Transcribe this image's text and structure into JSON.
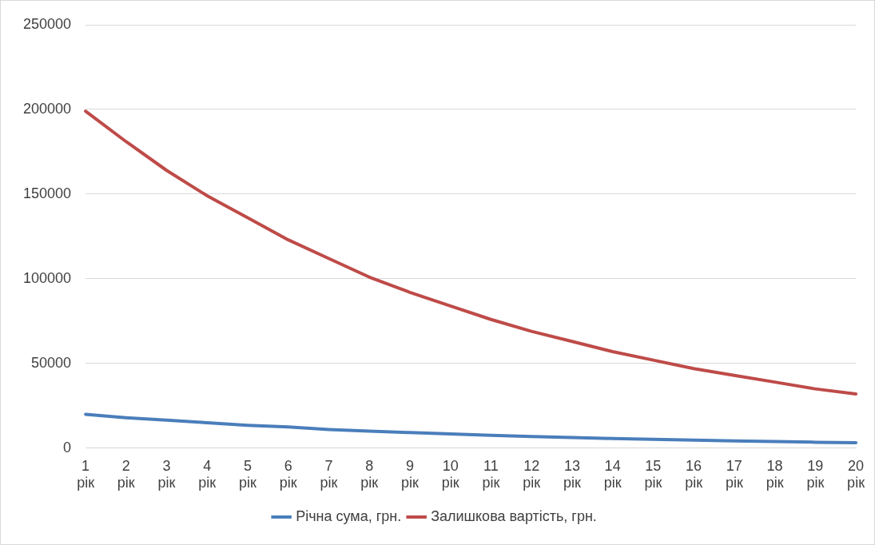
{
  "chart_data": {
    "type": "line",
    "categories": [
      "1 рік",
      "2 рік",
      "3 рік",
      "4 рік",
      "5 рік",
      "6 рік",
      "7 рік",
      "8 рік",
      "9 рік",
      "10 рік",
      "11 рік",
      "12 рік",
      "13 рік",
      "14 рік",
      "15 рік",
      "16 рік",
      "17 рік",
      "18 рік",
      "19 рік",
      "20 рік"
    ],
    "series": [
      {
        "name": "Річна сума, грн.",
        "color": "#4a7ebb",
        "values": [
          20000,
          18000,
          16500,
          15000,
          13500,
          12500,
          11000,
          10000,
          9200,
          8400,
          7600,
          6900,
          6300,
          5700,
          5200,
          4700,
          4300,
          3900,
          3500,
          3200
        ]
      },
      {
        "name": "Залишкова вартість, грн.",
        "color": "#be4b48",
        "values": [
          199000,
          181000,
          164000,
          149000,
          136000,
          123000,
          112000,
          101000,
          92000,
          84000,
          76000,
          69000,
          63000,
          57000,
          52000,
          47000,
          43000,
          39000,
          35000,
          32000
        ]
      }
    ],
    "ylim": [
      0,
      250000
    ],
    "yticks": [
      0,
      50000,
      100000,
      150000,
      200000,
      250000
    ],
    "grid": "y",
    "legend": "bottom",
    "marker": "none",
    "line_style": "solid"
  }
}
